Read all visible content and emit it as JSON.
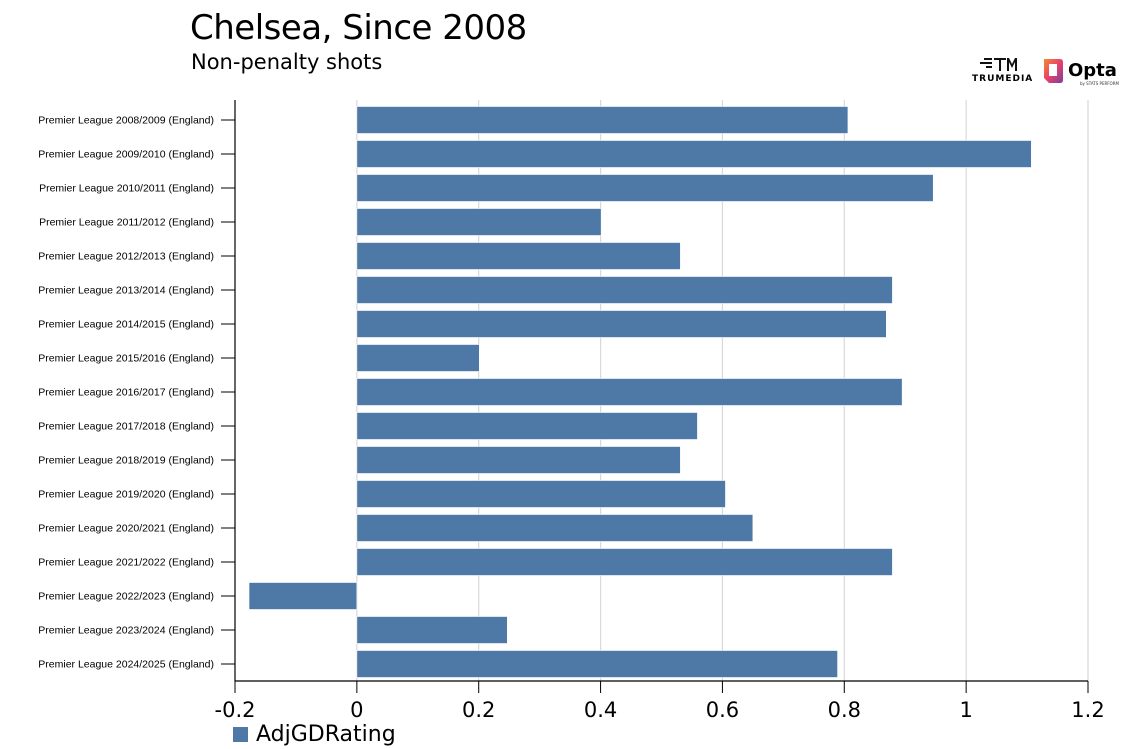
{
  "header": {
    "title": "Chelsea, Since 2008",
    "subtitle": "Non-penalty shots"
  },
  "logos": {
    "trumedia": "TRUMEDIA",
    "opta": "Opta",
    "opta_sub": "by STATS PERFORM"
  },
  "colors": {
    "bar": "#4e79a7",
    "grid": "#d9d9d9",
    "axis": "#000000",
    "opta_logo": "#e8406a"
  },
  "chart_data": {
    "type": "bar",
    "orientation": "horizontal",
    "categories": [
      "Premier League 2008/2009 (England)",
      "Premier League 2009/2010 (England)",
      "Premier League 2010/2011 (England)",
      "Premier League 2011/2012 (England)",
      "Premier League 2012/2013 (England)",
      "Premier League 2013/2014 (England)",
      "Premier League 2014/2015 (England)",
      "Premier League 2015/2016 (England)",
      "Premier League 2016/2017 (England)",
      "Premier League 2017/2018 (England)",
      "Premier League 2018/2019 (England)",
      "Premier League 2019/2020 (England)",
      "Premier League 2020/2021 (England)",
      "Premier League 2021/2022 (England)",
      "Premier League 2022/2023 (England)",
      "Premier League 2023/2024 (England)",
      "Premier League 2024/2025 (England)"
    ],
    "series": [
      {
        "name": "AdjGDRating",
        "values": [
          0.806,
          1.107,
          0.946,
          0.401,
          0.531,
          0.879,
          0.869,
          0.201,
          0.895,
          0.559,
          0.531,
          0.605,
          0.65,
          0.879,
          -0.177,
          0.247,
          0.789
        ]
      }
    ],
    "xlim": [
      -0.2,
      1.2
    ],
    "xticks": [
      "-0.2",
      "0",
      "0.2",
      "0.4",
      "0.6",
      "0.8",
      "1",
      "1.2"
    ],
    "xtick_values": [
      -0.2,
      0,
      0.2,
      0.4,
      0.6,
      0.8,
      1,
      1.2
    ],
    "grid": "vertical",
    "legend": "bottom-left"
  }
}
